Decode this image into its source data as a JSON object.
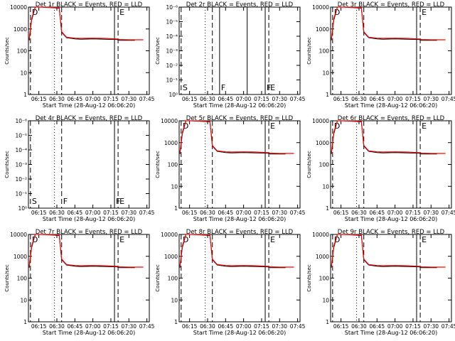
{
  "page": {
    "background": "#ffffff"
  },
  "colors": {
    "events": "#000000",
    "lld": "#ff0000",
    "axis": "#000000"
  },
  "x_tick_labels": [
    "06:15",
    "06:30",
    "06:45",
    "07:00",
    "07:15",
    "07:30",
    "07:45"
  ],
  "xlabel": "Start Time (28-Aug-12 06:06:20)",
  "ylabel": "Counts/sec",
  "chart_data": [
    {
      "type": "line",
      "title": "Det 1r BLACK = Events, RED = LLD",
      "yscale": "log",
      "ylim": [
        1,
        10000
      ],
      "y_tick_labels": [
        "1",
        "10",
        "100",
        "1000",
        "10000"
      ],
      "has_data": true,
      "grid": false,
      "legend": "none",
      "markers": [
        {
          "time": "06:08",
          "style": "dashed",
          "label": "D"
        },
        {
          "time": "06:28",
          "style": "dotted",
          "label": ""
        },
        {
          "time": "06:34",
          "style": "dashed",
          "label": ""
        },
        {
          "time": "07:18",
          "style": "solid",
          "label": ""
        },
        {
          "time": "07:21",
          "style": "dashed",
          "label": "E"
        }
      ],
      "series": [
        {
          "color": "#000000",
          "x": [
            "06:07",
            "06:09",
            "06:12",
            "06:14",
            "06:16",
            "06:32",
            "06:34",
            "06:38",
            "06:45",
            "06:50",
            "07:00",
            "07:10",
            "07:20",
            "07:22",
            "07:30",
            "07:35"
          ],
          "y": [
            300,
            2500,
            10000,
            10000,
            10000,
            9000,
            700,
            400,
            350,
            340,
            350,
            340,
            330,
            300,
            300,
            300
          ]
        },
        {
          "color": "#ff0000",
          "x": [
            "06:07",
            "06:09",
            "06:12",
            "06:14",
            "06:16",
            "06:32",
            "06:34",
            "06:38",
            "06:45",
            "06:50",
            "07:00",
            "07:10",
            "07:20",
            "07:22",
            "07:30",
            "07:42"
          ],
          "y": [
            350,
            3000,
            10000,
            10000,
            10000,
            9500,
            750,
            420,
            380,
            370,
            380,
            370,
            350,
            330,
            320,
            320
          ]
        }
      ]
    },
    {
      "type": "line",
      "title": "Det 2r BLACK = Events, RED = LLD",
      "yscale": "log",
      "ylim": [
        1,
        1e-06
      ],
      "y_tick_labels": [
        "10⁰",
        "10⁻¹",
        "10⁻²",
        "10⁻³",
        "10⁻⁴",
        "10⁻⁵",
        "10⁻⁶"
      ],
      "has_data": false,
      "grid": false,
      "legend": "none",
      "markers": [
        {
          "time": "06:08",
          "style": "dashed",
          "label": "S"
        },
        {
          "time": "06:28",
          "style": "dotted",
          "label": ""
        },
        {
          "time": "06:34",
          "style": "dashed",
          "label": ""
        },
        {
          "time": "06:40",
          "style": "solid",
          "label": "F"
        },
        {
          "time": "07:03",
          "style": "solid",
          "label": ""
        },
        {
          "time": "07:18",
          "style": "solid",
          "label": "F"
        },
        {
          "time": "07:21",
          "style": "dashed",
          "label": "E"
        }
      ],
      "series": []
    },
    {
      "type": "line",
      "title": "Det 3r BLACK = Events, RED = LLD",
      "yscale": "log",
      "ylim": [
        1,
        10000
      ],
      "y_tick_labels": [
        "1",
        "10",
        "100",
        "1000",
        "10000"
      ],
      "has_data": true,
      "grid": false,
      "legend": "none",
      "markers": [
        {
          "time": "06:08",
          "style": "dashed",
          "label": "D"
        },
        {
          "time": "06:28",
          "style": "dotted",
          "label": ""
        },
        {
          "time": "06:34",
          "style": "dashed",
          "label": ""
        },
        {
          "time": "07:18",
          "style": "solid",
          "label": ""
        },
        {
          "time": "07:21",
          "style": "dashed",
          "label": "E"
        }
      ],
      "series": [
        {
          "color": "#000000",
          "x": [
            "06:07",
            "06:09",
            "06:12",
            "06:14",
            "06:16",
            "06:32",
            "06:34",
            "06:38",
            "06:45",
            "06:50",
            "07:00",
            "07:10",
            "07:20",
            "07:22",
            "07:30",
            "07:35"
          ],
          "y": [
            300,
            2500,
            10000,
            10000,
            10000,
            9000,
            700,
            400,
            350,
            340,
            350,
            340,
            330,
            300,
            300,
            300
          ]
        },
        {
          "color": "#ff0000",
          "x": [
            "06:07",
            "06:09",
            "06:12",
            "06:14",
            "06:16",
            "06:32",
            "06:34",
            "06:38",
            "06:45",
            "06:50",
            "07:00",
            "07:10",
            "07:20",
            "07:22",
            "07:30",
            "07:42"
          ],
          "y": [
            350,
            3000,
            10000,
            10000,
            10000,
            9500,
            750,
            420,
            380,
            370,
            380,
            370,
            350,
            330,
            320,
            320
          ]
        }
      ]
    },
    {
      "type": "line",
      "title": "Det 4r BLACK = Events, RED = LLD",
      "yscale": "log",
      "ylim": [
        1,
        1e-06
      ],
      "y_tick_labels": [
        "10⁰",
        "10⁻¹",
        "10⁻²",
        "10⁻³",
        "10⁻⁴",
        "10⁻⁵",
        "10⁻⁶"
      ],
      "has_data": false,
      "grid": false,
      "legend": "none",
      "markers": [
        {
          "time": "06:08",
          "style": "dashed",
          "label": "S"
        },
        {
          "time": "06:28",
          "style": "dotted",
          "label": ""
        },
        {
          "time": "06:34",
          "style": "dashed",
          "label": "F"
        },
        {
          "time": "07:18",
          "style": "solid",
          "label": "F"
        },
        {
          "time": "07:21",
          "style": "dashed",
          "label": "E"
        }
      ],
      "series": []
    },
    {
      "type": "line",
      "title": "Det 5r BLACK = Events, RED = LLD",
      "yscale": "log",
      "ylim": [
        1,
        10000
      ],
      "y_tick_labels": [
        "1",
        "10",
        "100",
        "1000",
        "10000"
      ],
      "has_data": true,
      "grid": false,
      "legend": "none",
      "markers": [
        {
          "time": "06:08",
          "style": "dashed",
          "label": "D"
        },
        {
          "time": "06:28",
          "style": "dotted",
          "label": ""
        },
        {
          "time": "06:34",
          "style": "dashed",
          "label": ""
        },
        {
          "time": "07:18",
          "style": "solid",
          "label": ""
        },
        {
          "time": "07:21",
          "style": "dashed",
          "label": "E"
        }
      ],
      "series": [
        {
          "color": "#000000",
          "x": [
            "06:07",
            "06:09",
            "06:12",
            "06:14",
            "06:16",
            "06:32",
            "06:34",
            "06:38",
            "06:45",
            "06:50",
            "07:00",
            "07:10",
            "07:20",
            "07:22",
            "07:30",
            "07:35"
          ],
          "y": [
            300,
            2500,
            10000,
            10000,
            10000,
            9000,
            700,
            400,
            350,
            340,
            350,
            340,
            330,
            300,
            300,
            300
          ]
        },
        {
          "color": "#ff0000",
          "x": [
            "06:07",
            "06:09",
            "06:12",
            "06:14",
            "06:16",
            "06:32",
            "06:34",
            "06:38",
            "06:45",
            "06:50",
            "07:00",
            "07:10",
            "07:20",
            "07:22",
            "07:30",
            "07:42"
          ],
          "y": [
            350,
            3000,
            10000,
            10000,
            10000,
            9500,
            750,
            420,
            380,
            370,
            380,
            370,
            350,
            330,
            320,
            320
          ]
        }
      ]
    },
    {
      "type": "line",
      "title": "Det 6r BLACK = Events, RED = LLD",
      "yscale": "log",
      "ylim": [
        1,
        10000
      ],
      "y_tick_labels": [
        "1",
        "10",
        "100",
        "1000",
        "10000"
      ],
      "has_data": true,
      "grid": false,
      "legend": "none",
      "markers": [
        {
          "time": "06:08",
          "style": "dashed",
          "label": "D"
        },
        {
          "time": "06:28",
          "style": "dotted",
          "label": ""
        },
        {
          "time": "06:34",
          "style": "dashed",
          "label": ""
        },
        {
          "time": "07:18",
          "style": "solid",
          "label": ""
        },
        {
          "time": "07:21",
          "style": "dashed",
          "label": "E"
        }
      ],
      "series": [
        {
          "color": "#000000",
          "x": [
            "06:07",
            "06:09",
            "06:12",
            "06:14",
            "06:16",
            "06:32",
            "06:34",
            "06:38",
            "06:45",
            "06:50",
            "07:00",
            "07:10",
            "07:20",
            "07:22",
            "07:30",
            "07:35"
          ],
          "y": [
            300,
            2500,
            10000,
            10000,
            10000,
            9000,
            700,
            400,
            350,
            340,
            350,
            340,
            330,
            300,
            300,
            300
          ]
        },
        {
          "color": "#ff0000",
          "x": [
            "06:07",
            "06:09",
            "06:12",
            "06:14",
            "06:16",
            "06:32",
            "06:34",
            "06:38",
            "06:45",
            "06:50",
            "07:00",
            "07:10",
            "07:20",
            "07:22",
            "07:30",
            "07:42"
          ],
          "y": [
            350,
            3000,
            10000,
            10000,
            10000,
            9500,
            750,
            420,
            380,
            370,
            380,
            370,
            350,
            330,
            320,
            320
          ]
        }
      ]
    },
    {
      "type": "line",
      "title": "Det 7r BLACK = Events, RED = LLD",
      "yscale": "log",
      "ylim": [
        1,
        10000
      ],
      "y_tick_labels": [
        "1",
        "10",
        "100",
        "1000",
        "10000"
      ],
      "has_data": true,
      "grid": false,
      "legend": "none",
      "markers": [
        {
          "time": "06:08",
          "style": "dashed",
          "label": "D"
        },
        {
          "time": "06:28",
          "style": "dotted",
          "label": ""
        },
        {
          "time": "06:34",
          "style": "dashed",
          "label": ""
        },
        {
          "time": "07:18",
          "style": "solid",
          "label": ""
        },
        {
          "time": "07:21",
          "style": "dashed",
          "label": "E"
        }
      ],
      "series": [
        {
          "color": "#000000",
          "x": [
            "06:07",
            "06:09",
            "06:12",
            "06:14",
            "06:16",
            "06:32",
            "06:34",
            "06:38",
            "06:45",
            "06:50",
            "07:00",
            "07:10",
            "07:20",
            "07:22",
            "07:30",
            "07:35"
          ],
          "y": [
            300,
            2500,
            10000,
            10000,
            10000,
            9000,
            700,
            400,
            350,
            340,
            350,
            340,
            330,
            300,
            300,
            300
          ]
        },
        {
          "color": "#ff0000",
          "x": [
            "06:07",
            "06:09",
            "06:12",
            "06:14",
            "06:16",
            "06:32",
            "06:34",
            "06:38",
            "06:45",
            "06:50",
            "07:00",
            "07:10",
            "07:20",
            "07:22",
            "07:30",
            "07:42"
          ],
          "y": [
            350,
            3000,
            10000,
            10000,
            10000,
            9500,
            750,
            420,
            380,
            370,
            380,
            370,
            350,
            330,
            320,
            320
          ]
        }
      ]
    },
    {
      "type": "line",
      "title": "Det 8r BLACK = Events, RED = LLD",
      "yscale": "log",
      "ylim": [
        1,
        10000
      ],
      "y_tick_labels": [
        "1",
        "10",
        "100",
        "1000",
        "10000"
      ],
      "has_data": true,
      "grid": false,
      "legend": "none",
      "markers": [
        {
          "time": "06:08",
          "style": "dashed",
          "label": "D"
        },
        {
          "time": "06:28",
          "style": "dotted",
          "label": ""
        },
        {
          "time": "06:34",
          "style": "dashed",
          "label": ""
        },
        {
          "time": "07:18",
          "style": "solid",
          "label": ""
        },
        {
          "time": "07:21",
          "style": "dashed",
          "label": "E"
        }
      ],
      "series": [
        {
          "color": "#000000",
          "x": [
            "06:07",
            "06:09",
            "06:12",
            "06:14",
            "06:16",
            "06:32",
            "06:34",
            "06:38",
            "06:45",
            "06:50",
            "07:00",
            "07:10",
            "07:20",
            "07:22",
            "07:30",
            "07:35"
          ],
          "y": [
            300,
            2500,
            10000,
            10000,
            10000,
            9000,
            700,
            400,
            350,
            340,
            350,
            340,
            330,
            300,
            300,
            300
          ]
        },
        {
          "color": "#ff0000",
          "x": [
            "06:07",
            "06:09",
            "06:12",
            "06:14",
            "06:16",
            "06:32",
            "06:34",
            "06:38",
            "06:45",
            "06:50",
            "07:00",
            "07:10",
            "07:20",
            "07:22",
            "07:30",
            "07:42"
          ],
          "y": [
            350,
            3000,
            10000,
            10000,
            10000,
            9500,
            750,
            420,
            380,
            370,
            380,
            370,
            350,
            330,
            320,
            320
          ]
        }
      ]
    },
    {
      "type": "line",
      "title": "Det 9r BLACK = Events, RED = LLD",
      "yscale": "log",
      "ylim": [
        1,
        10000
      ],
      "y_tick_labels": [
        "1",
        "10",
        "100",
        "1000",
        "10000"
      ],
      "has_data": true,
      "grid": false,
      "legend": "none",
      "markers": [
        {
          "time": "06:08",
          "style": "dashed",
          "label": "D"
        },
        {
          "time": "06:28",
          "style": "dotted",
          "label": ""
        },
        {
          "time": "06:34",
          "style": "dashed",
          "label": ""
        },
        {
          "time": "07:18",
          "style": "solid",
          "label": ""
        },
        {
          "time": "07:21",
          "style": "dashed",
          "label": "E"
        }
      ],
      "series": [
        {
          "color": "#000000",
          "x": [
            "06:07",
            "06:09",
            "06:12",
            "06:14",
            "06:16",
            "06:32",
            "06:34",
            "06:38",
            "06:45",
            "06:50",
            "07:00",
            "07:10",
            "07:20",
            "07:22",
            "07:30",
            "07:35"
          ],
          "y": [
            300,
            2500,
            10000,
            10000,
            10000,
            9000,
            700,
            400,
            350,
            340,
            350,
            340,
            330,
            300,
            300,
            300
          ]
        },
        {
          "color": "#ff0000",
          "x": [
            "06:07",
            "06:09",
            "06:12",
            "06:14",
            "06:16",
            "06:32",
            "06:34",
            "06:38",
            "06:45",
            "06:50",
            "07:00",
            "07:10",
            "07:20",
            "07:22",
            "07:30",
            "07:42"
          ],
          "y": [
            350,
            3000,
            10000,
            10000,
            10000,
            9500,
            750,
            420,
            380,
            370,
            380,
            370,
            350,
            330,
            320,
            320
          ]
        }
      ]
    }
  ]
}
